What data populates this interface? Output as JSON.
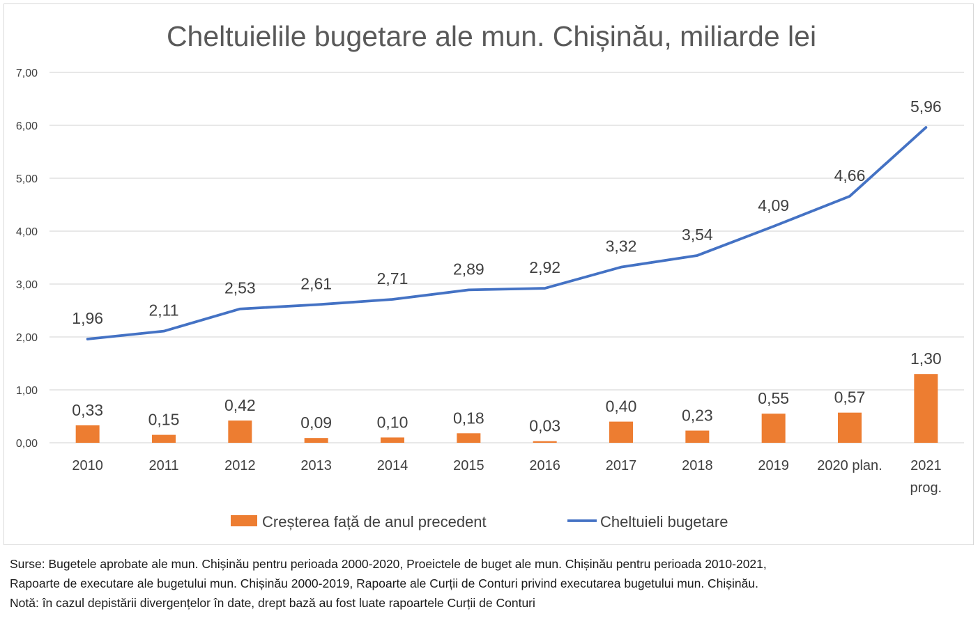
{
  "chart_data": {
    "type": "bar+line",
    "title": "Cheltuielile bugetare ale mun. Chișinău, miliarde lei",
    "categories": [
      [
        "2010"
      ],
      [
        "2011"
      ],
      [
        "2012"
      ],
      [
        "2013"
      ],
      [
        "2014"
      ],
      [
        "2015"
      ],
      [
        "2016"
      ],
      [
        "2017"
      ],
      [
        "2018"
      ],
      [
        "2019"
      ],
      [
        "2020 plan."
      ],
      [
        "2021",
        "prog."
      ]
    ],
    "series": [
      {
        "name": "Creșterea față de anul precedent",
        "kind": "bar",
        "color": "#ED7D31",
        "values": [
          0.33,
          0.15,
          0.42,
          0.09,
          0.1,
          0.18,
          0.03,
          0.4,
          0.23,
          0.55,
          0.57,
          1.3
        ],
        "labels": [
          "0,33",
          "0,15",
          "0,42",
          "0,09",
          "0,10",
          "0,18",
          "0,03",
          "0,40",
          "0,23",
          "0,55",
          "0,57",
          "1,30"
        ]
      },
      {
        "name": "Cheltuieli bugetare",
        "kind": "line",
        "color": "#4472C4",
        "values": [
          1.96,
          2.11,
          2.53,
          2.61,
          2.71,
          2.89,
          2.92,
          3.32,
          3.54,
          4.09,
          4.66,
          5.96
        ],
        "labels": [
          "1,96",
          "2,11",
          "2,53",
          "2,61",
          "2,71",
          "2,89",
          "2,92",
          "3,32",
          "3,54",
          "4,09",
          "4,66",
          "5,96"
        ]
      }
    ],
    "ylim": [
      0,
      7
    ],
    "yticks": [
      0,
      1,
      2,
      3,
      4,
      5,
      6,
      7
    ],
    "ytick_labels": [
      "0,00",
      "1,00",
      "2,00",
      "3,00",
      "4,00",
      "5,00",
      "6,00",
      "7,00"
    ],
    "grid": true,
    "legend": "bottom",
    "colors": {
      "gridline": "#d9d9d9",
      "axis_text": "#404040",
      "title": "#595959"
    }
  },
  "notes": {
    "line1": "Surse: Bugetele aprobate ale mun. Chișinău pentru perioada 2000-2020, Proeictele de buget ale mun. Chișinău pentru perioada 2010-2021,",
    "line2": "Rapoarte de executare ale bugetului mun. Chișinău 2000-2019, Rapoarte ale Curții de Conturi privind executarea bugetului mun. Chișinău.",
    "line3": "Notă: în cazul depistării divergențelor în date, drept bază au fost luate rapoartele Curții de Conturi"
  }
}
